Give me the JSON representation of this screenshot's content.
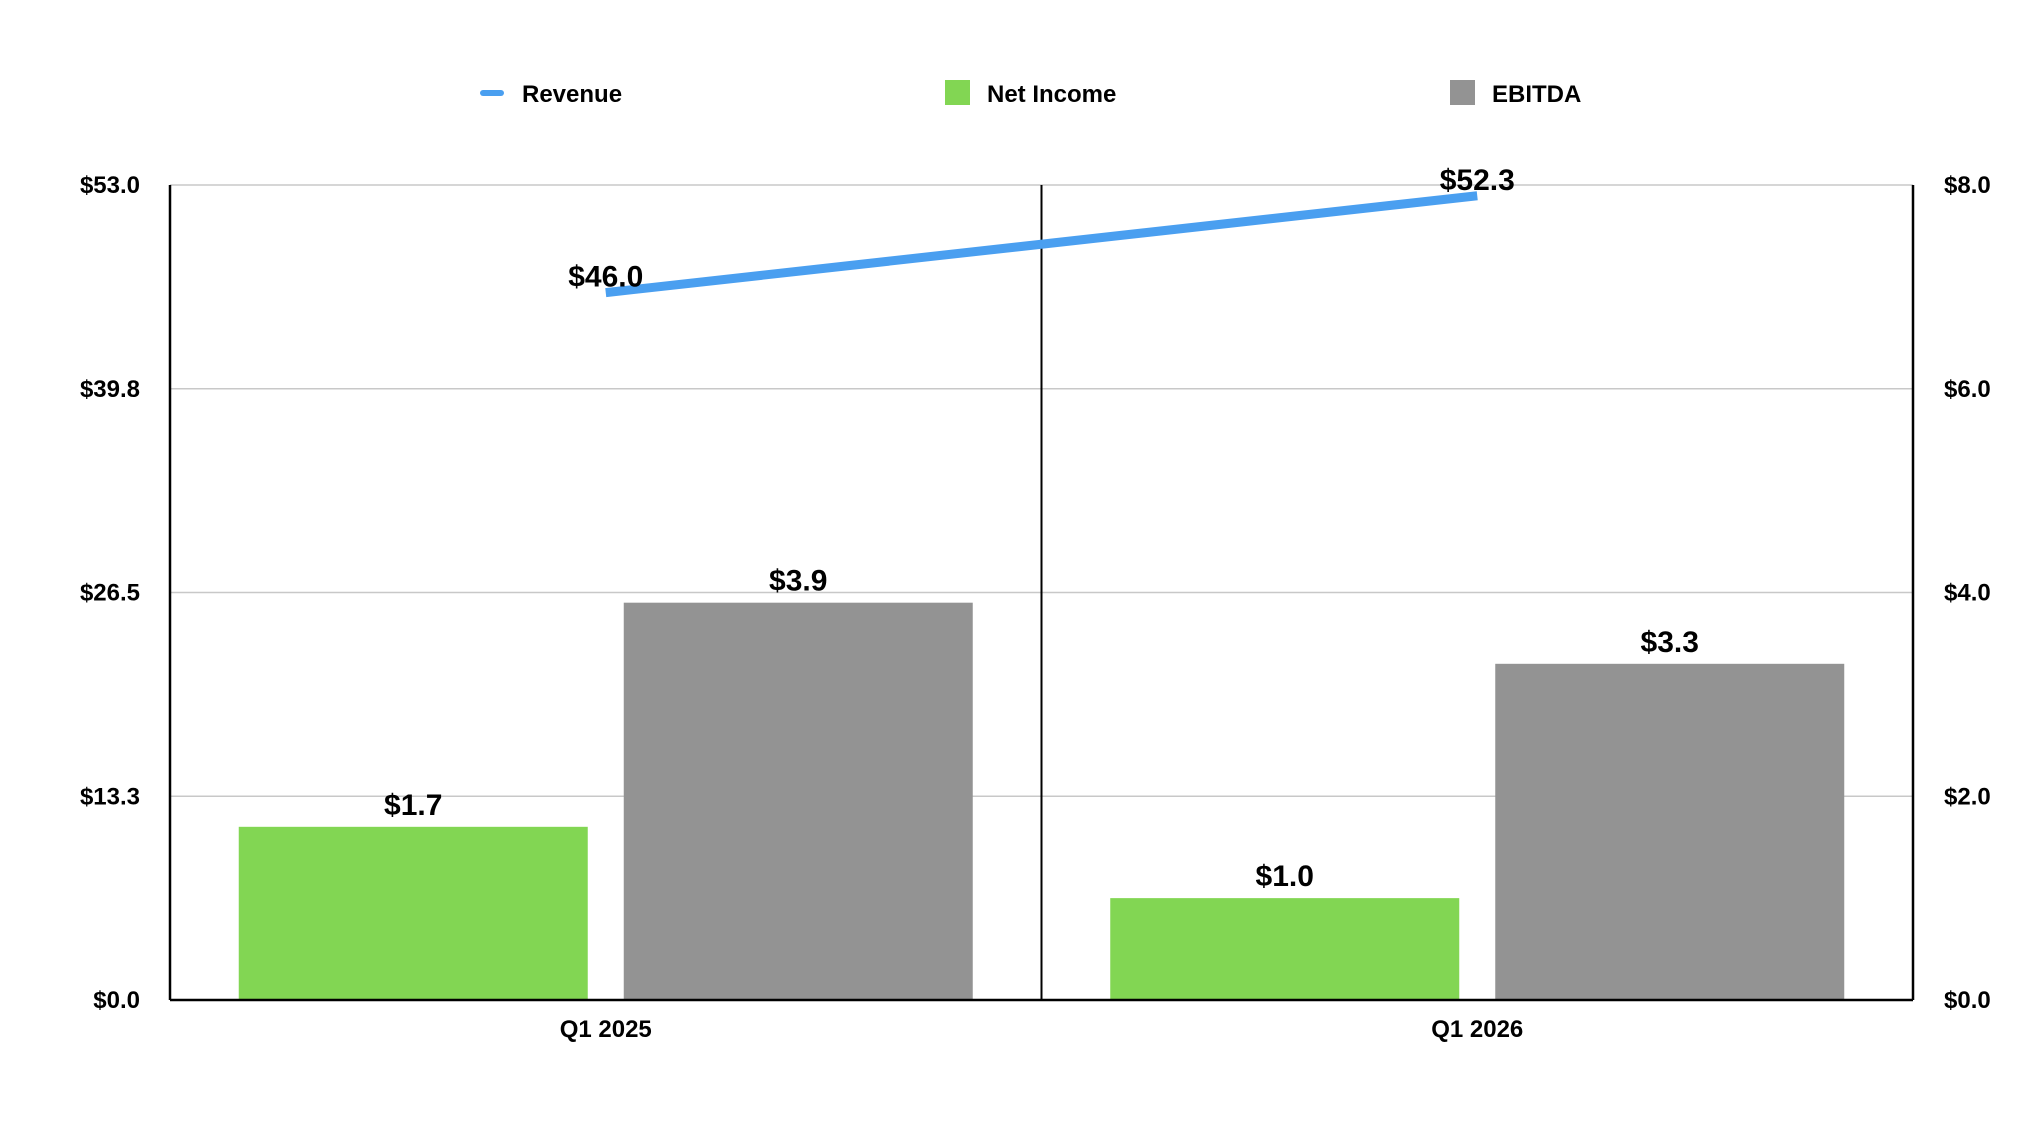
{
  "chart_data": {
    "type": "bar",
    "categories": [
      "Q1 2025",
      "Q1 2026"
    ],
    "series": [
      {
        "name": "Revenue",
        "kind": "line",
        "axis": "left",
        "color": "#4a9ff0",
        "values": [
          46.0,
          52.3
        ],
        "labels": [
          "$46.0",
          "$52.3"
        ]
      },
      {
        "name": "Net Income",
        "kind": "bar",
        "axis": "right",
        "color": "#82d653",
        "values": [
          1.7,
          1.0
        ],
        "labels": [
          "$1.7",
          "$1.0"
        ]
      },
      {
        "name": "EBITDA",
        "kind": "bar",
        "axis": "right",
        "color": "#939393",
        "values": [
          3.9,
          3.3
        ],
        "labels": [
          "$3.9",
          "$3.3"
        ]
      }
    ],
    "left_axis": {
      "ticks": [
        0,
        13.25,
        26.5,
        39.75,
        53.0
      ],
      "tick_labels": [
        "$0.0",
        "$13.3",
        "$26.5",
        "$39.8",
        "$53.0"
      ],
      "ylim": [
        0,
        53.0
      ]
    },
    "right_axis": {
      "ticks": [
        0,
        2,
        4,
        6,
        8
      ],
      "tick_labels": [
        "$0.0",
        "$2.0",
        "$4.0",
        "$6.0",
        "$8.0"
      ],
      "ylim": [
        0,
        8.0
      ]
    },
    "legend_position": "top-center",
    "grid": true
  }
}
